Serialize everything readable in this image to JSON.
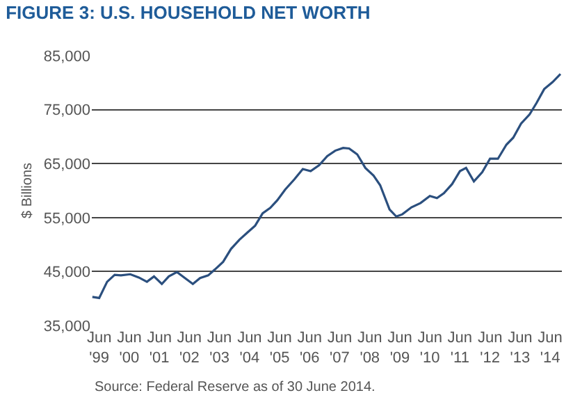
{
  "chart_data": {
    "type": "line",
    "title": "FIGURE 3: U.S. HOUSEHOLD NET WORTH",
    "ylabel": "$ Billions",
    "annotations": [
      "Source: Federal Reserve as of 30 June 2014."
    ],
    "x": [
      "1999-04-08",
      "1999-06-30",
      "1999-10-04",
      "2000-01-04",
      "2000-03-20",
      "2000-07-12",
      "2000-10-23",
      "2001-01-30",
      "2001-04-26",
      "2001-07-30",
      "2001-10-23",
      "2002-01-30",
      "2002-05-07",
      "2002-08-11",
      "2002-11-07",
      "2003-02-14",
      "2003-05-07",
      "2003-08-14",
      "2003-11-18",
      "2004-02-28",
      "2004-06-02",
      "2004-09-06",
      "2004-12-06",
      "2005-03-09",
      "2005-06-02",
      "2005-09-06",
      "2005-12-27",
      "2006-04-08",
      "2006-07-12",
      "2006-10-23",
      "2007-01-30",
      "2007-05-07",
      "2007-08-11",
      "2007-10-23",
      "2008-01-30",
      "2008-05-07",
      "2008-08-14",
      "2008-11-03",
      "2009-02-25",
      "2009-05-18",
      "2009-07-30",
      "2009-11-18",
      "2010-03-09",
      "2010-06-30",
      "2010-09-24",
      "2010-12-17",
      "2011-03-27",
      "2011-06-30",
      "2011-09-13",
      "2011-12-17",
      "2012-03-27",
      "2012-06-30",
      "2012-10-04",
      "2013-01-15",
      "2013-04-08",
      "2013-07-12",
      "2013-10-23",
      "2014-01-15",
      "2014-04-19",
      "2014-07-30",
      "2014-11-03"
    ],
    "series": [
      {
        "color": "#2b4f7e",
        "values": [
          40300,
          40100,
          43100,
          44400,
          44300,
          44500,
          43900,
          43100,
          44100,
          42700,
          44100,
          44900,
          43800,
          42700,
          43800,
          44300,
          45400,
          46800,
          49200,
          50900,
          52200,
          53500,
          55800,
          56800,
          58200,
          60200,
          62100,
          64000,
          63600,
          64700,
          66400,
          67400,
          67900,
          67800,
          66700,
          64200,
          62800,
          61000,
          56500,
          55200,
          55600,
          56900,
          57700,
          59000,
          58600,
          59500,
          61200,
          63600,
          64200,
          61700,
          63400,
          65900,
          65900,
          68500,
          69800,
          72400,
          74100,
          76200,
          78800,
          80100,
          81600
        ]
      }
    ],
    "xlim": [
      "1999-04-01",
      "2014-11-20"
    ],
    "xticks": [
      {
        "value": "1999-06-30",
        "label": "Jun '99"
      },
      {
        "value": "2000-06-30",
        "label": "Jun '00"
      },
      {
        "value": "2001-06-30",
        "label": "Jun '01"
      },
      {
        "value": "2002-06-30",
        "label": "Jun '02"
      },
      {
        "value": "2003-06-30",
        "label": "Jun '03"
      },
      {
        "value": "2004-06-30",
        "label": "Jun '04"
      },
      {
        "value": "2005-06-30",
        "label": "Jun '05"
      },
      {
        "value": "2006-06-30",
        "label": "Jun '06"
      },
      {
        "value": "2007-06-30",
        "label": "Jun '07"
      },
      {
        "value": "2008-06-30",
        "label": "Jun '08"
      },
      {
        "value": "2009-06-30",
        "label": "Jun '09"
      },
      {
        "value": "2010-06-30",
        "label": "Jun '10"
      },
      {
        "value": "2011-06-30",
        "label": "Jun '11"
      },
      {
        "value": "2012-06-30",
        "label": "Jun '12"
      },
      {
        "value": "2013-06-30",
        "label": "Jun '13"
      },
      {
        "value": "2014-06-30",
        "label": "Jun '14"
      }
    ],
    "ylim": [
      35000,
      85000
    ],
    "yticks": [
      {
        "value": 35000,
        "label": "35,000"
      },
      {
        "value": 45000,
        "label": "45,000"
      },
      {
        "value": 55000,
        "label": "55,000"
      },
      {
        "value": 65000,
        "label": "65,000"
      },
      {
        "value": 75000,
        "label": "75,000"
      },
      {
        "value": 85000,
        "label": "85,000"
      }
    ],
    "grid": "y",
    "marker": "none",
    "line_style": "solid"
  }
}
